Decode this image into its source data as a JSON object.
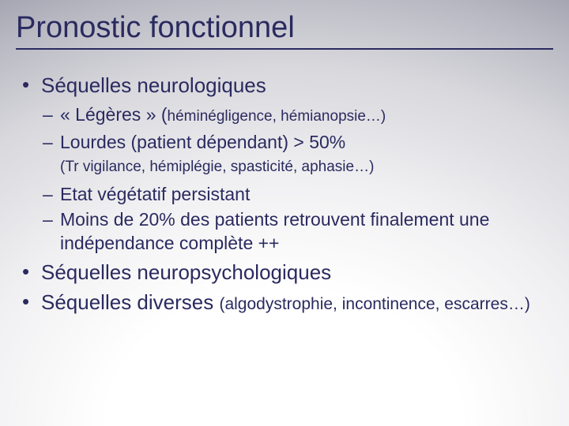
{
  "colors": {
    "text": "#2a2a60",
    "underline": "#2a2a60",
    "bg_gradient_inner": "#ffffff",
    "bg_gradient_outer": "#787890"
  },
  "typography": {
    "title_fontsize": 38,
    "bullet1_fontsize": 26,
    "bullet2_fontsize": 23,
    "paren_fontsize_b1": 21,
    "paren_fontsize_b2": 19,
    "note_fontsize": 19,
    "font_family": "Arial"
  },
  "title": "Pronostic fonctionnel",
  "bullets": {
    "item1": {
      "text": "Séquelles neurologiques",
      "sub": {
        "a_main": "« Légères » (",
        "a_paren": "héminégligence, hémianopsie…)",
        "b": "Lourdes (patient dépendant) > 50%",
        "note": "(Tr vigilance, hémiplégie, spasticité, aphasie…)",
        "c": "Etat végétatif persistant",
        "d": "Moins de 20% des patients retrouvent finalement une indépendance complète ++"
      }
    },
    "item2": {
      "text": "Séquelles neuropsychologiques"
    },
    "item3": {
      "main": "Séquelles diverses ",
      "paren": "(algodystrophie, incontinence, escarres…)"
    }
  }
}
